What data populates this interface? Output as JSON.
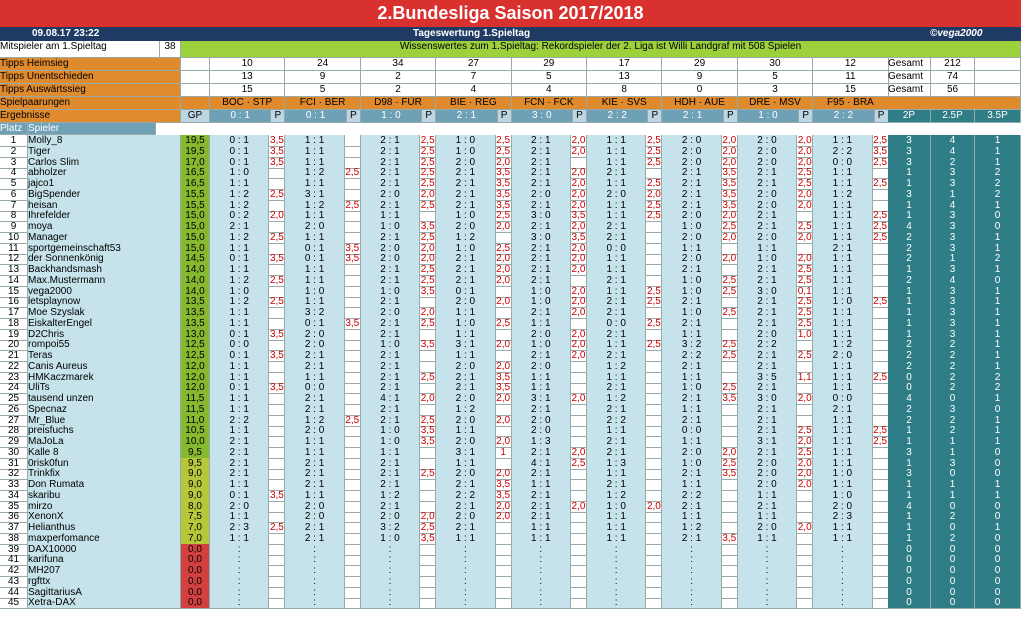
{
  "header": {
    "title": "2.Bundesliga Saison 2017/2018",
    "date": "09.08.17 23:22",
    "center": "Tageswertung 1.Spieltag",
    "copyright": "©vega2000"
  },
  "info": {
    "label": "Mitspieler am 1.Spieltag",
    "count": "38",
    "message": "Wissenswertes zum 1.Spieltag: Rekordspieler der 2. Liga ist Willi Landgraf mit 508 Spielen"
  },
  "tipps": [
    {
      "label": "Tipps Heimsieg",
      "values": [
        "10",
        "24",
        "34",
        "27",
        "29",
        "17",
        "29",
        "30",
        "12"
      ],
      "gesamt_label": "Gesamt",
      "gesamt": "212"
    },
    {
      "label": "Tipps Unentschieden",
      "values": [
        "13",
        "9",
        "2",
        "7",
        "5",
        "13",
        "9",
        "5",
        "11"
      ],
      "gesamt_label": "Gesamt",
      "gesamt": "74"
    },
    {
      "label": "Tipps Auswärtssieg",
      "values": [
        "15",
        "5",
        "2",
        "4",
        "4",
        "8",
        "0",
        "3",
        "15"
      ],
      "gesamt_label": "Gesamt",
      "gesamt": "56"
    }
  ],
  "spielpaarungen_label": "Spielpaarungen",
  "ergebnisse_label": "Ergebnisse",
  "matches": [
    {
      "name": "BOC · STP",
      "result": "0 : 1"
    },
    {
      "name": "FCI · BER",
      "result": "0 : 1"
    },
    {
      "name": "D98 · FÜR",
      "result": "1 : 0"
    },
    {
      "name": "BIE · REG",
      "result": "2 : 1"
    },
    {
      "name": "FCN · FCK",
      "result": "3 : 0"
    },
    {
      "name": "KIE · SVS",
      "result": "2 : 2"
    },
    {
      "name": "HDH · AUE",
      "result": "2 : 1"
    },
    {
      "name": "DRE · MSV",
      "result": "1 : 0"
    },
    {
      "name": "F95 · BRA",
      "result": "2 : 2"
    }
  ],
  "headers": {
    "gp": "GP",
    "p": "P",
    "platz": "Platz",
    "spieler": "Spieler",
    "c2": "2P",
    "c25": "2.5P",
    "c35": "3.5P"
  },
  "players": [
    {
      "rank": "1",
      "name": "Molly_8",
      "gp": "19,5",
      "c2": "3",
      "c25": "4",
      "c35": "1"
    },
    {
      "rank": "2",
      "name": "Tiger",
      "gp": "19,5",
      "c2": "3",
      "c25": "4",
      "c35": "1"
    },
    {
      "rank": "3",
      "name": "Carlos Slim",
      "gp": "17,0",
      "c2": "3",
      "c25": "2",
      "c35": "1"
    },
    {
      "rank": "4",
      "name": "abholzer",
      "gp": "16,5",
      "c2": "1",
      "c25": "3",
      "c35": "2"
    },
    {
      "rank": "5",
      "name": "jajco1",
      "gp": "16,5",
      "c2": "1",
      "c25": "3",
      "c35": "2"
    },
    {
      "rank": "6",
      "name": "BigSpender",
      "gp": "15,5",
      "c2": "3",
      "c25": "1",
      "c35": "2"
    },
    {
      "rank": "7",
      "name": "heisan",
      "gp": "15,5",
      "c2": "1",
      "c25": "4",
      "c35": "1"
    },
    {
      "rank": "8",
      "name": "Ihrefelder",
      "gp": "15,0",
      "c2": "1",
      "c25": "3",
      "c35": "0"
    },
    {
      "rank": "9",
      "name": "moya",
      "gp": "15,0",
      "c2": "4",
      "c25": "3",
      "c35": "0"
    },
    {
      "rank": "10",
      "name": "Manager",
      "gp": "15,0",
      "c2": "2",
      "c25": "3",
      "c35": "1"
    },
    {
      "rank": "11",
      "name": "sportgemeinschaft53",
      "gp": "15,0",
      "c2": "2",
      "c25": "3",
      "c35": "1"
    },
    {
      "rank": "12",
      "name": "der Sonnenkönig",
      "gp": "14,5",
      "c2": "2",
      "c25": "1",
      "c35": "2"
    },
    {
      "rank": "13",
      "name": "Backhandsmash",
      "gp": "14,0",
      "c2": "1",
      "c25": "3",
      "c35": "1"
    },
    {
      "rank": "14",
      "name": "Max.Mustermann",
      "gp": "14,0",
      "c2": "2",
      "c25": "4",
      "c35": "0"
    },
    {
      "rank": "15",
      "name": "vega2000",
      "gp": "14,0",
      "c2": "1",
      "c25": "3",
      "c35": "1"
    },
    {
      "rank": "16",
      "name": "letsplaynow",
      "gp": "13,5",
      "c2": "1",
      "c25": "3",
      "c35": "1"
    },
    {
      "rank": "17",
      "name": "Moe Szyslak",
      "gp": "13,5",
      "c2": "1",
      "c25": "3",
      "c35": "1"
    },
    {
      "rank": "18",
      "name": "EiskalterEngel",
      "gp": "13,5",
      "c2": "1",
      "c25": "3",
      "c35": "1"
    },
    {
      "rank": "19",
      "name": "D2Chris",
      "gp": "13,0",
      "c2": "1",
      "c25": "3",
      "c35": "1"
    },
    {
      "rank": "20",
      "name": "rompoi55",
      "gp": "12,5",
      "c2": "2",
      "c25": "2",
      "c35": "1"
    },
    {
      "rank": "21",
      "name": "Teras",
      "gp": "12,5",
      "c2": "2",
      "c25": "2",
      "c35": "1"
    },
    {
      "rank": "22",
      "name": "Canis Aureus",
      "gp": "12,0",
      "c2": "2",
      "c25": "2",
      "c35": "1"
    },
    {
      "rank": "23",
      "name": "HMKaczmarek",
      "gp": "12,0",
      "c2": "0",
      "c25": "2",
      "c35": "2"
    },
    {
      "rank": "24",
      "name": "UliTs",
      "gp": "12,0",
      "c2": "0",
      "c25": "2",
      "c35": "2"
    },
    {
      "rank": "25",
      "name": "tausend unzen",
      "gp": "11,5",
      "c2": "4",
      "c25": "0",
      "c35": "1"
    },
    {
      "rank": "26",
      "name": "Specnaz",
      "gp": "11,5",
      "c2": "2",
      "c25": "3",
      "c35": "0"
    },
    {
      "rank": "27",
      "name": "Mr_Blue",
      "gp": "11,0",
      "c2": "2",
      "c25": "2",
      "c35": "1"
    },
    {
      "rank": "28",
      "name": "preisfuchs",
      "gp": "10,5",
      "c2": "1",
      "c25": "2",
      "c35": "1"
    },
    {
      "rank": "29",
      "name": "MaJoLa",
      "gp": "10,0",
      "c2": "1",
      "c25": "1",
      "c35": "1"
    },
    {
      "rank": "30",
      "name": "Kalle 8",
      "gp": "9,5",
      "c2": "3",
      "c25": "1",
      "c35": "0"
    },
    {
      "rank": "31",
      "name": "0risk0fun",
      "gp": "9,5",
      "c2": "1",
      "c25": "3",
      "c35": "0"
    },
    {
      "rank": "32",
      "name": "Trinkfix",
      "gp": "9,0",
      "c2": "3",
      "c25": "0",
      "c35": "0"
    },
    {
      "rank": "33",
      "name": "Don Rumata",
      "gp": "9,0",
      "c2": "1",
      "c25": "1",
      "c35": "1"
    },
    {
      "rank": "34",
      "name": "skaribu",
      "gp": "9,0",
      "c2": "1",
      "c25": "1",
      "c35": "1"
    },
    {
      "rank": "35",
      "name": "mirzo",
      "gp": "8,0",
      "c2": "4",
      "c25": "0",
      "c35": "0"
    },
    {
      "rank": "36",
      "name": "XenonX",
      "gp": "7,5",
      "c2": "1",
      "c25": "2",
      "c35": "0"
    },
    {
      "rank": "37",
      "name": "Helianthus",
      "gp": "7,0",
      "c2": "1",
      "c25": "0",
      "c35": "1"
    },
    {
      "rank": "38",
      "name": "maxperfomance",
      "gp": "7,0",
      "c2": "1",
      "c25": "2",
      "c35": "0"
    },
    {
      "rank": "39",
      "name": "DAX10000",
      "gp": "0,0",
      "c2": "0",
      "c25": "0",
      "c35": "0"
    },
    {
      "rank": "41",
      "name": "karifuna",
      "gp": "0,0",
      "c2": "0",
      "c25": "0",
      "c35": "0"
    },
    {
      "rank": "42",
      "name": "MH207",
      "gp": "0,0",
      "c2": "0",
      "c25": "0",
      "c35": "0"
    },
    {
      "rank": "43",
      "name": "rgfttx",
      "gp": "0,0",
      "c2": "0",
      "c25": "0",
      "c35": "0"
    },
    {
      "rank": "44",
      "name": "SagittariusA",
      "gp": "0,0",
      "c2": "0",
      "c25": "0",
      "c35": "0"
    },
    {
      "rank": "45",
      "name": "Xetra-DAX",
      "gp": "0,0",
      "c2": "0",
      "c25": "0",
      "c35": "0"
    }
  ],
  "tips_rows": [
    [
      "0:1 3,5",
      "1:1",
      "2:1 2,5",
      "1:0 2,5",
      "2:1 2,0",
      "1:1 2,5",
      "2:0 2,0",
      "2:0 2,0",
      "1:1 2,5"
    ],
    [
      "0:1 3,5",
      "1:1",
      "2:1 2,5",
      "1:0 2,5",
      "2:1 2,0",
      "1:1 2,5",
      "2:0 2,0",
      "2:0 2,0",
      "2:2 3,5"
    ],
    [
      "0:1 3,5",
      "1:1",
      "2:1 2,5",
      "2:0 2,0",
      "2:1",
      "1:1 2,5",
      "2:0 2,0",
      "2:0 2,0",
      "0:0 2,5"
    ],
    [
      "1:0",
      "1:2 2,5",
      "2:1 2,5",
      "2:1 3,5",
      "2:1 2,0",
      "2:1",
      "2:1 3,5",
      "2:1 2,5",
      "1:1"
    ],
    [
      "1:1",
      "1:1",
      "2:1 2,5",
      "2:1 3,5",
      "2:1 2,0",
      "1:1 2,5",
      "2:1 3,5",
      "2:1 2,5",
      "1:1 2,5"
    ],
    [
      "1:2 2,5",
      "3:1",
      "2:0 2,0",
      "2:1 3,5",
      "2:0 2,0",
      "2:0 2,0",
      "2:1 3,5",
      "2:0 2,0",
      "1:2"
    ],
    [
      "1:2",
      "1:2 2,5",
      "2:1 2,5",
      "2:1 3,5",
      "2:1 2,0",
      "1:1 2,5",
      "2:1 3,5",
      "2:0 2,0",
      "1:1"
    ],
    [
      "0:2 2,0",
      "1:1",
      "1:1",
      "1:0 2,5",
      "3:0 3,5",
      "1:1 2,5",
      "2:0 2,0",
      "2:1",
      "1:1 2,5"
    ],
    [
      "2:1",
      "2:0",
      "1:0 3,5",
      "2:0 2,0",
      "2:1 2,0",
      "2:1",
      "1:0 2,5",
      "2:1 2,5",
      "1:1 2,5"
    ],
    [
      "1:2 2,5",
      "1:1",
      "2:1 2,5",
      "1:2",
      "3:0 3,5",
      "2:1",
      "2:0 2,0",
      "2:0 2,0",
      "1:1 2,5"
    ],
    [
      "1:1",
      "0:1 3,5",
      "2:0 2,0",
      "1:0 2,5",
      "2:1 2,0",
      "0:0",
      "1:1",
      "1:1",
      "2:1"
    ],
    [
      "0:1 3,5",
      "0:1 3,5",
      "2:0 2,0",
      "2:1 2,0",
      "2:1 2,0",
      "1:1",
      "2:0 2,0",
      "1:0 2,0",
      "1:1"
    ],
    [
      "1:1",
      "1:1",
      "2:1 2,5",
      "2:1 2,0",
      "2:1 2,0",
      "1:1",
      "2:1",
      "2:1 2,5",
      "1:1"
    ],
    [
      "1:2 2,5",
      "1:1",
      "2:1 2,5",
      "2:1 2,0",
      "2:1",
      "2:1",
      "1:0 2,5",
      "2:1 2,5",
      "1:1"
    ],
    [
      "1:0",
      "1:0",
      "1:0 3,5",
      "0:1",
      "1:0 2,0",
      "1:1 2,5",
      "1:0 2,5",
      "3:0 0,1",
      "1:1"
    ],
    [
      "1:2 2,5",
      "1:1",
      "2:1",
      "2:0 2,0",
      "1:0 2,0",
      "2:1 2,5",
      "2:1",
      "2:1 2,5",
      "1:0 2,5"
    ],
    [
      "1:1",
      "3:2",
      "2:0 2,0",
      "1:1",
      "2:1 2,0",
      "2:1",
      "1:0 2,5",
      "2:1 2,5",
      "1:1"
    ],
    [
      "1:1",
      "0:1 3,5",
      "2:1 2,5",
      "1:0 2,5",
      "1:1",
      "0:0 2,5",
      "2:1",
      "2:1 2,5",
      "1:1"
    ],
    [
      "0:1 3,5",
      "2:0",
      "2:1",
      "1:1",
      "2:0 2,0",
      "2:1",
      "1:1",
      "2:0 1,0",
      "1:1"
    ],
    [
      "0:0",
      "2:0",
      "1:0 3,5",
      "3:1 2,0",
      "1:0 2,0",
      "1:1 2,5",
      "3:2 2,5",
      "2:2",
      "1:2"
    ],
    [
      "0:1 3,5",
      "2:1",
      "2:1",
      "1:1",
      "2:1 2,0",
      "2:1",
      "2:2 2,5",
      "2:1 2,5",
      "2:0"
    ],
    [
      "1:1",
      "2:1",
      "2:1",
      "2:0 2,0",
      "2:0",
      "1:2",
      "2:1",
      "2:1",
      "1:1"
    ],
    [
      "1:1",
      "1:1",
      "2:1 2,5",
      "2:1 3,5",
      "1:1",
      "1:1",
      "1:1",
      "3:5 1,1",
      "1:1 2,5"
    ],
    [
      "0:1 3,5",
      "0:0",
      "2:1",
      "2:1 3,5",
      "1:1",
      "2:1",
      "1:0 2,5",
      "2:1",
      "1:1"
    ],
    [
      "1:1",
      "2:1",
      "4:1 2,0",
      "2:0 2,0",
      "3:1 2,0",
      "1:2",
      "2:1 3,5",
      "3:0 2,0",
      "0:0"
    ],
    [
      "1:1",
      "2:1",
      "2:1",
      "1:2",
      "2:1",
      "2:1",
      "1:1",
      "2:1",
      "2:1"
    ],
    [
      "2:2",
      "1:2 2,5",
      "2:1 2,5",
      "2:0 2,0",
      "2:0",
      "2:2",
      "2:1",
      "2:1",
      "1:1"
    ],
    [
      "1:1",
      "2:0",
      "1:0 3,5",
      "1:1",
      "2:0",
      "1:1",
      "0:0",
      "2:1 2,5",
      "1:1 2,5"
    ],
    [
      "2:1",
      "1:1",
      "1:0 3,5",
      "2:0 2,0",
      "1:3",
      "2:1",
      "1:1",
      "3:1 2,0",
      "1:1 2,5"
    ],
    [
      "2:1",
      "1:1",
      "1:1",
      "3:1 1",
      "2:1 2,0",
      "2:1",
      "2:0 2,0",
      "2:1 2,5",
      "1:1"
    ],
    [
      "2:1",
      "2:1",
      "2:1",
      "1:1",
      "4:1 2,5",
      "1:3",
      "1:0 2,5",
      "2:0 2,0",
      "1:1"
    ],
    [
      "2:1",
      "2:1",
      "2:1 2,5",
      "2:0 2,0",
      "2:1",
      "1:1",
      "2:1 3,5",
      "2:0 2,0",
      "1:0"
    ],
    [
      "1:1",
      "2:1",
      "2:1",
      "2:1 3,5",
      "1:1",
      "2:1",
      "1:1",
      "2:0 2,0",
      "1:1"
    ],
    [
      "0:1 3,5",
      "1:1",
      "1:2",
      "2:2 3,5",
      "2:1",
      "1:2",
      "2:2",
      "1:1",
      "1:0"
    ],
    [
      "2:0",
      "2:0",
      "2:1",
      "2:1 2,0",
      "2:1 2,0",
      "1:0 2,0",
      "2:1",
      "2:1",
      "2:0"
    ],
    [
      "1:1",
      "2:0",
      "2:0 2,0",
      "2:0 2,0",
      "2:1",
      "1:1",
      "1:1",
      "1:1",
      "2:3"
    ],
    [
      "2:3 2,5",
      "2:1",
      "3:2 2,5",
      "2:1",
      "1:1",
      "1:1",
      "1:2",
      "2:0 2,0",
      "1:1"
    ],
    [
      "1:1",
      "2:1",
      "1:0 3,5",
      "1:1",
      "1:1",
      "1:1",
      "2:1 3,5",
      "1:1",
      "1:1"
    ]
  ]
}
